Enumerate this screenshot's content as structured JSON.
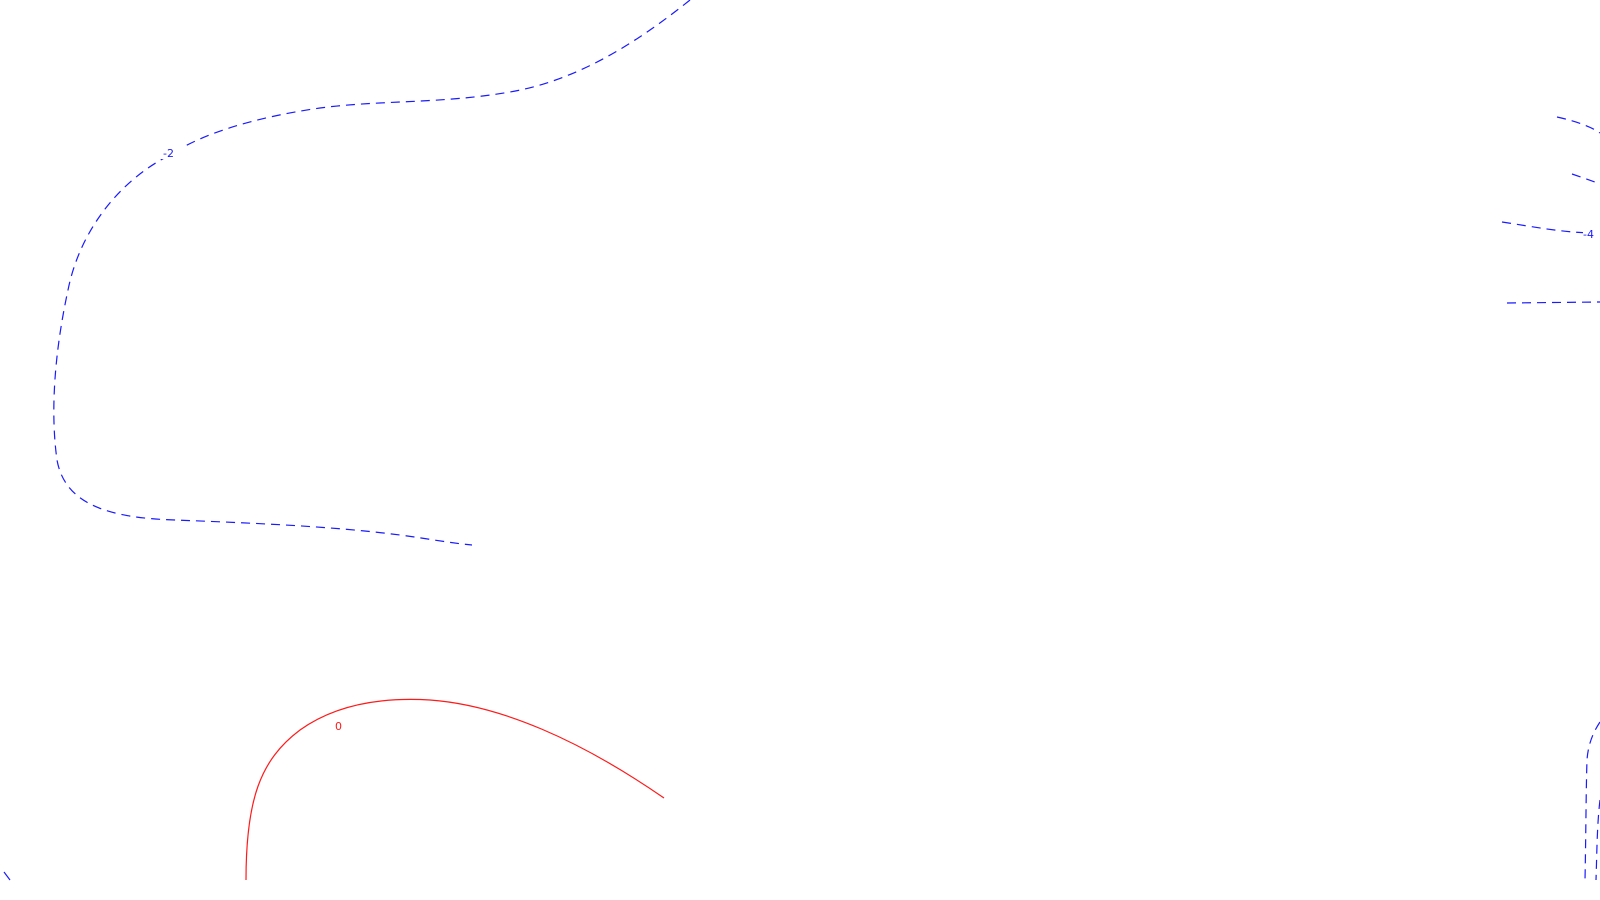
{
  "diagram": {
    "type": "contour-plot",
    "contour_values_shown": [
      -2,
      -4,
      0
    ],
    "styles": {
      "negative": {
        "color": "#1a1aff",
        "dash": "dashed"
      },
      "zero": {
        "color": "#ff1a1a",
        "dash": "solid"
      }
    },
    "labels": [
      {
        "id": "neg2",
        "text": "-2"
      },
      {
        "id": "neg4",
        "text": "-4"
      },
      {
        "id": "zero",
        "text": "0"
      }
    ]
  }
}
